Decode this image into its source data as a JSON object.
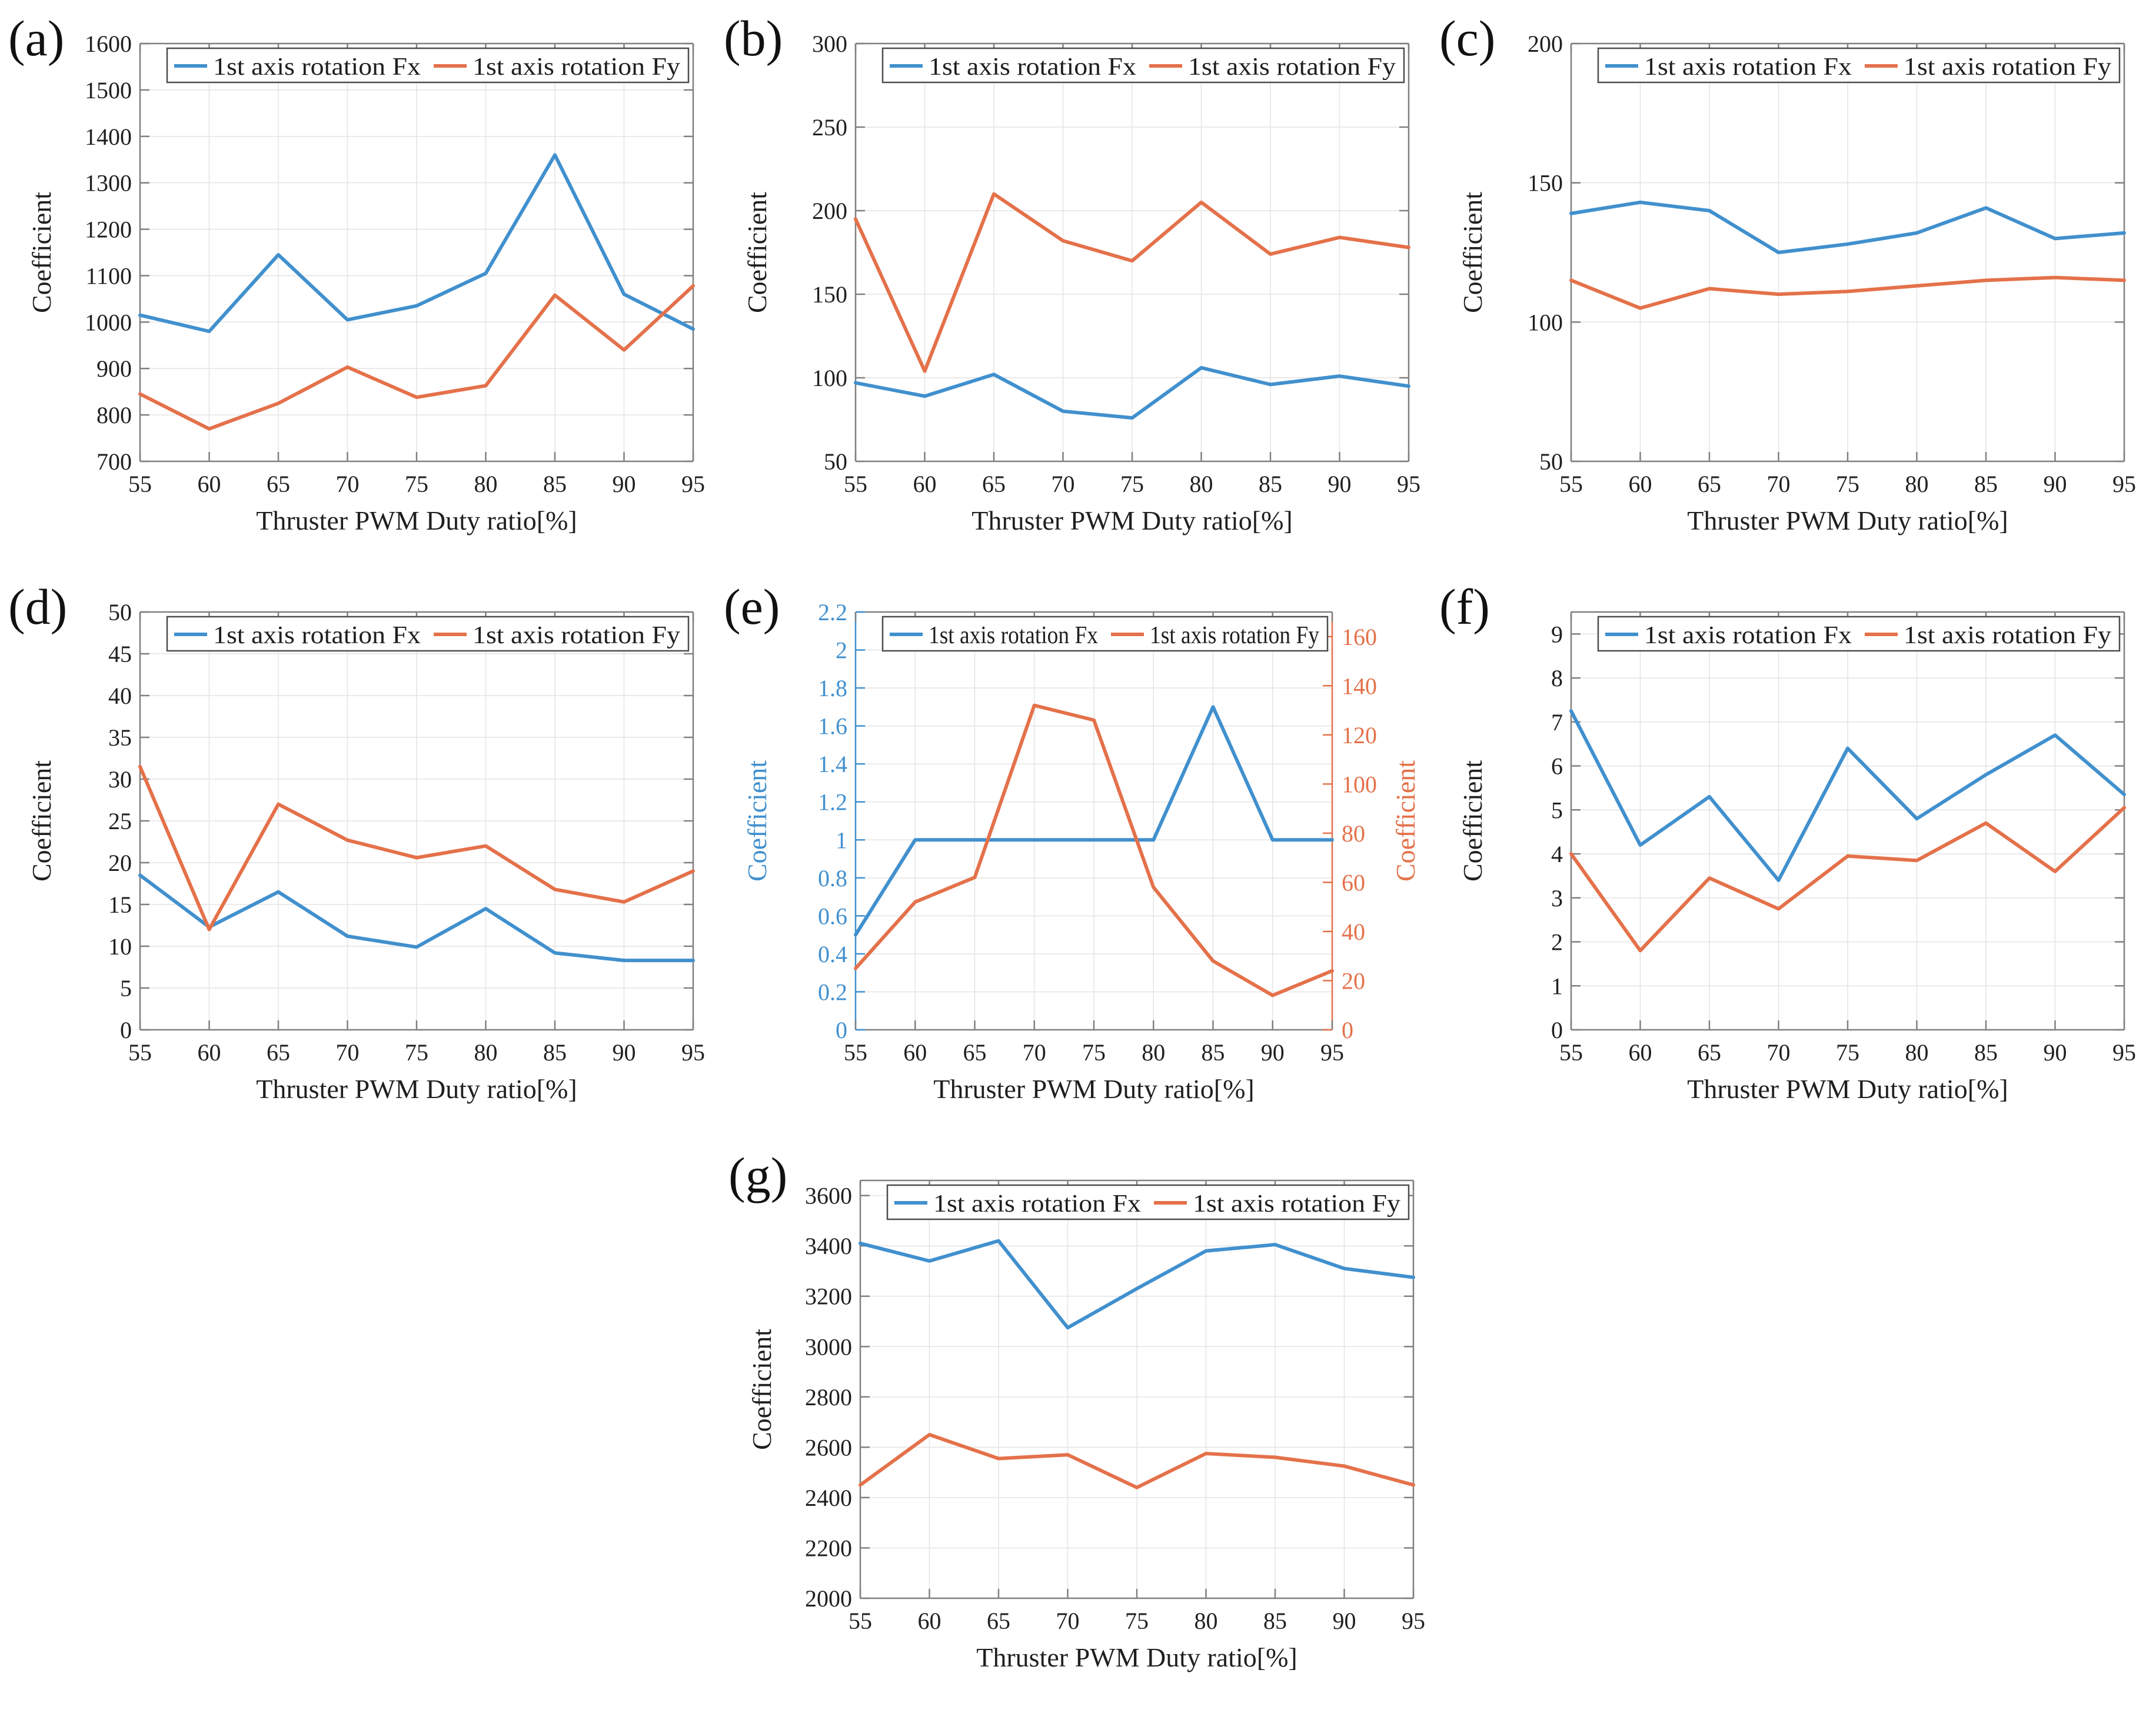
{
  "figure": {
    "background": "#ffffff",
    "panel_count": 7
  },
  "colors": {
    "fx_line": "#4190ce",
    "fy_line": "#e4714a",
    "grid": "#e4e4e4",
    "spine": "#808080",
    "text": "#1f1f1f",
    "legend_border": "#4d4d4d"
  },
  "legend": {
    "fx_label": "1st axis rotation Fx",
    "fy_label": "1st axis rotation Fy"
  },
  "axis": {
    "xlabel": "Thruster PWM Duty ratio[%]",
    "ylabel": "Coefficient"
  },
  "chart_data": [
    {
      "id": "a",
      "panel_label": "(a)",
      "type": "line",
      "xlabel": "Thruster PWM Duty ratio[%]",
      "ylabel": "Coefficient",
      "xlim": [
        55,
        95
      ],
      "xticks": [
        55,
        60,
        65,
        70,
        75,
        80,
        85,
        90,
        95
      ],
      "ylim": [
        700,
        1600
      ],
      "yticks": [
        700,
        800,
        900,
        1000,
        1100,
        1200,
        1300,
        1400,
        1500,
        1600
      ],
      "grid": true,
      "legend_position": "top",
      "x": [
        55,
        60,
        65,
        70,
        75,
        80,
        85,
        90,
        95
      ],
      "series": [
        {
          "name": "1st axis rotation Fx",
          "color_key": "fx_line",
          "axis": "left",
          "values": [
            1015,
            980,
            1145,
            1005,
            1035,
            1105,
            1360,
            1060,
            985
          ]
        },
        {
          "name": "1st axis rotation Fy",
          "color_key": "fy_line",
          "axis": "left",
          "values": [
            845,
            770,
            825,
            903,
            838,
            863,
            1058,
            940,
            1078
          ]
        }
      ]
    },
    {
      "id": "b",
      "panel_label": "(b)",
      "type": "line",
      "xlabel": "Thruster PWM Duty ratio[%]",
      "ylabel": "Coefficient",
      "xlim": [
        55,
        95
      ],
      "xticks": [
        55,
        60,
        65,
        70,
        75,
        80,
        85,
        90,
        95
      ],
      "ylim": [
        50,
        300
      ],
      "yticks": [
        50,
        100,
        150,
        200,
        250,
        300
      ],
      "grid": true,
      "legend_position": "top",
      "x": [
        55,
        60,
        65,
        70,
        75,
        80,
        85,
        90,
        95
      ],
      "series": [
        {
          "name": "1st axis rotation Fx",
          "color_key": "fx_line",
          "axis": "left",
          "values": [
            97,
            89,
            102,
            80,
            76,
            106,
            96,
            101,
            95
          ]
        },
        {
          "name": "1st axis rotation Fy",
          "color_key": "fy_line",
          "axis": "left",
          "values": [
            195,
            104,
            210,
            182,
            170,
            205,
            174,
            184,
            178
          ]
        }
      ]
    },
    {
      "id": "c",
      "panel_label": "(c)",
      "type": "line",
      "xlabel": "Thruster PWM Duty ratio[%]",
      "ylabel": "Coefficient",
      "xlim": [
        55,
        95
      ],
      "xticks": [
        55,
        60,
        65,
        70,
        75,
        80,
        85,
        90,
        95
      ],
      "ylim": [
        50,
        200
      ],
      "yticks": [
        50,
        100,
        150,
        200
      ],
      "grid": true,
      "legend_position": "top",
      "x": [
        55,
        60,
        65,
        70,
        75,
        80,
        85,
        90,
        95
      ],
      "series": [
        {
          "name": "1st axis rotation Fx",
          "color_key": "fx_line",
          "axis": "left",
          "values": [
            139,
            143,
            140,
            125,
            128,
            132,
            141,
            130,
            132
          ]
        },
        {
          "name": "1st axis rotation Fy",
          "color_key": "fy_line",
          "axis": "left",
          "values": [
            115,
            105,
            112,
            110,
            111,
            113,
            115,
            116,
            115
          ]
        }
      ]
    },
    {
      "id": "d",
      "panel_label": "(d)",
      "type": "line",
      "xlabel": "Thruster PWM Duty ratio[%]",
      "ylabel": "Coefficient",
      "xlim": [
        55,
        95
      ],
      "xticks": [
        55,
        60,
        65,
        70,
        75,
        80,
        85,
        90,
        95
      ],
      "ylim": [
        0,
        50
      ],
      "yticks": [
        0,
        5,
        10,
        15,
        20,
        25,
        30,
        35,
        40,
        45,
        50
      ],
      "grid": true,
      "legend_position": "top",
      "x": [
        55,
        60,
        65,
        70,
        75,
        80,
        85,
        90,
        95
      ],
      "series": [
        {
          "name": "1st axis rotation Fx",
          "color_key": "fx_line",
          "axis": "left",
          "values": [
            18.5,
            12.3,
            16.5,
            11.2,
            9.9,
            14.5,
            9.2,
            8.3,
            8.3
          ]
        },
        {
          "name": "1st axis rotation Fy",
          "color_key": "fy_line",
          "axis": "left",
          "values": [
            31.5,
            12,
            27,
            22.7,
            20.6,
            22,
            16.8,
            15.3,
            19
          ]
        }
      ]
    },
    {
      "id": "e",
      "panel_label": "(e)",
      "type": "line",
      "xlabel": "Thruster PWM Duty ratio[%]",
      "ylabel": "Coefficient",
      "ylabel_right": "Coefficient",
      "xlim": [
        55,
        95
      ],
      "xticks": [
        55,
        60,
        65,
        70,
        75,
        80,
        85,
        90,
        95
      ],
      "ylim": [
        0,
        2.2
      ],
      "yticks": [
        0,
        0.2,
        0.4,
        0.6,
        0.8,
        1,
        1.2,
        1.4,
        1.6,
        1.8,
        2,
        2.2
      ],
      "ylim_right": [
        0,
        170
      ],
      "yticks_right": [
        0,
        20,
        40,
        60,
        80,
        100,
        120,
        140,
        160
      ],
      "grid": true,
      "legend_position": "top",
      "x": [
        55,
        60,
        65,
        70,
        75,
        80,
        85,
        90,
        95
      ],
      "series": [
        {
          "name": "1st axis rotation Fx",
          "color_key": "fx_line",
          "axis": "left",
          "values": [
            0.5,
            1,
            1,
            1,
            1,
            1,
            1.7,
            1,
            1
          ]
        },
        {
          "name": "1st axis rotation Fy",
          "color_key": "fy_line",
          "axis": "right",
          "values": [
            25,
            52,
            62,
            132,
            126,
            58,
            28,
            14,
            24
          ]
        }
      ]
    },
    {
      "id": "f",
      "panel_label": "(f)",
      "type": "line",
      "xlabel": "Thruster PWM Duty ratio[%]",
      "ylabel": "Coefficient",
      "xlim": [
        55,
        95
      ],
      "xticks": [
        55,
        60,
        65,
        70,
        75,
        80,
        85,
        90,
        95
      ],
      "ylim": [
        0,
        9.5
      ],
      "yticks": [
        0,
        1,
        2,
        3,
        4,
        5,
        6,
        7,
        8,
        9
      ],
      "grid": true,
      "legend_position": "top",
      "x": [
        55,
        60,
        65,
        70,
        75,
        80,
        85,
        90,
        95
      ],
      "series": [
        {
          "name": "1st axis rotation Fx",
          "color_key": "fx_line",
          "axis": "left",
          "values": [
            7.25,
            4.2,
            5.3,
            3.4,
            6.4,
            4.8,
            5.8,
            6.7,
            5.35
          ]
        },
        {
          "name": "1st axis rotation Fy",
          "color_key": "fy_line",
          "axis": "left",
          "values": [
            4,
            1.8,
            3.45,
            2.75,
            3.95,
            3.85,
            4.7,
            3.6,
            5.05
          ]
        }
      ]
    },
    {
      "id": "g",
      "panel_label": "(g)",
      "type": "line",
      "xlabel": "Thruster PWM Duty ratio[%]",
      "ylabel": "Coefficient",
      "xlim": [
        55,
        95
      ],
      "xticks": [
        55,
        60,
        65,
        70,
        75,
        80,
        85,
        90,
        95
      ],
      "ylim": [
        2000,
        3660
      ],
      "yticks": [
        2000,
        2200,
        2400,
        2600,
        2800,
        3000,
        3200,
        3400,
        3600
      ],
      "grid": true,
      "legend_position": "top",
      "x": [
        55,
        60,
        65,
        70,
        75,
        80,
        85,
        90,
        95
      ],
      "series": [
        {
          "name": "1st axis rotation Fx",
          "color_key": "fx_line",
          "axis": "left",
          "values": [
            3410,
            3340,
            3420,
            3075,
            3230,
            3380,
            3405,
            3310,
            3275
          ]
        },
        {
          "name": "1st axis rotation Fy",
          "color_key": "fy_line",
          "axis": "left",
          "values": [
            2450,
            2650,
            2555,
            2570,
            2440,
            2575,
            2560,
            2525,
            2450
          ]
        }
      ]
    }
  ]
}
